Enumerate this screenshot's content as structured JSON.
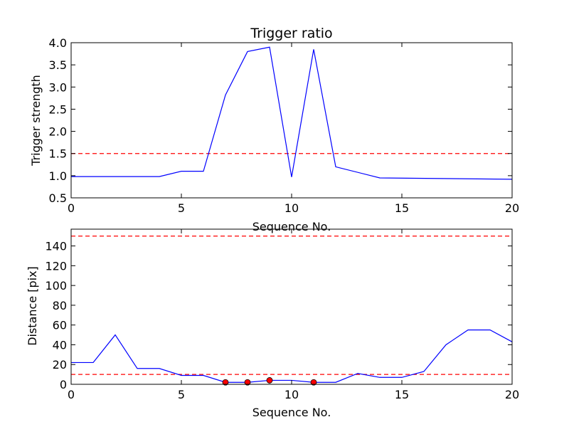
{
  "chart_data": [
    {
      "type": "line",
      "title": "Trigger ratio",
      "xlabel": "Sequence No.",
      "ylabel": "Trigger strength",
      "xlim": [
        0,
        20
      ],
      "ylim": [
        0.5,
        4.0
      ],
      "grid": false,
      "x_ticks": [
        "0",
        "5",
        "10",
        "15",
        "20"
      ],
      "y_ticks": [
        "0.5",
        "1.0",
        "1.5",
        "2.0",
        "2.5",
        "3.0",
        "3.5",
        "4.0"
      ],
      "series": [
        {
          "color": "#0000ff",
          "x": [
            0,
            4,
            5,
            6,
            7,
            8,
            9,
            10,
            11,
            12,
            14,
            20
          ],
          "y": [
            0.98,
            0.98,
            1.1,
            1.1,
            2.82,
            3.8,
            3.9,
            0.97,
            3.85,
            1.2,
            0.95,
            0.92
          ]
        }
      ],
      "reference_lines": [
        {
          "y": 1.5,
          "color": "#ff0000",
          "style": "dashed"
        }
      ]
    },
    {
      "type": "line",
      "title": "",
      "xlabel": "Sequence No.",
      "ylabel": "Distance [pix]",
      "xlim": [
        0,
        20
      ],
      "ylim": [
        0,
        157
      ],
      "grid": false,
      "x_ticks": [
        "0",
        "5",
        "10",
        "15",
        "20"
      ],
      "y_ticks": [
        "0",
        "20",
        "40",
        "60",
        "80",
        "100",
        "120",
        "140"
      ],
      "series": [
        {
          "color": "#0000ff",
          "x": [
            0,
            1,
            2,
            3,
            4,
            5,
            6,
            7,
            8,
            9,
            10,
            11,
            12,
            13,
            14,
            15,
            16,
            17,
            18,
            19,
            20
          ],
          "y": [
            22,
            22,
            50,
            16,
            16,
            9,
            9,
            2,
            2,
            4,
            4,
            2,
            2,
            11,
            7,
            7,
            13,
            40,
            55,
            55,
            43
          ]
        }
      ],
      "markers": {
        "color": "#ff0000",
        "x": [
          7,
          8,
          9,
          11
        ],
        "y": [
          2,
          2,
          4,
          2
        ]
      },
      "reference_lines": [
        {
          "y": 150,
          "color": "#ff0000",
          "style": "dashed"
        },
        {
          "y": 10,
          "color": "#ff0000",
          "style": "dashed"
        }
      ]
    }
  ]
}
